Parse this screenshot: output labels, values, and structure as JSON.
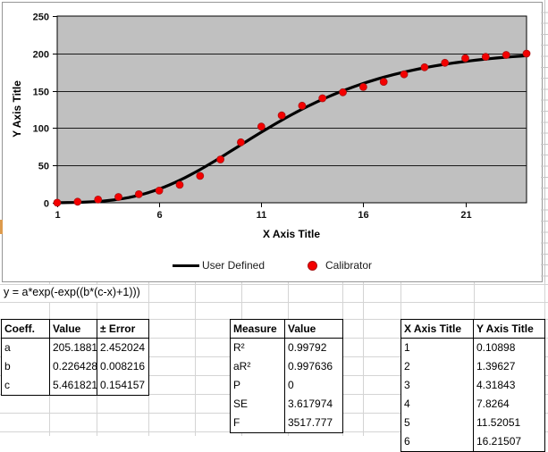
{
  "chart_data": {
    "type": "line",
    "title": "",
    "xlabel": "X Axis Title",
    "ylabel": "Y Axis Title",
    "xlim": [
      1,
      24
    ],
    "ylim": [
      0,
      250
    ],
    "x_ticks": [
      1,
      6,
      11,
      16,
      21
    ],
    "y_ticks": [
      0,
      50,
      100,
      150,
      200,
      250
    ],
    "grid": true,
    "plot_bg": "#c0c0c0",
    "legend_position": "bottom",
    "x": [
      1,
      2,
      3,
      4,
      5,
      6,
      7,
      8,
      9,
      10,
      11,
      12,
      13,
      14,
      15,
      16,
      17,
      18,
      19,
      20,
      21,
      22,
      23,
      24
    ],
    "series": [
      {
        "name": "User Defined",
        "type": "line",
        "color": "#000000",
        "values": [
          0.12,
          0.53,
          1.78,
          4.66,
          10.03,
          18.49,
          30.11,
          44.43,
          60.58,
          77.56,
          94.46,
          110.54,
          125.31,
          138.47,
          149.96,
          159.8,
          168.1,
          175.03,
          180.76,
          185.46,
          189.3,
          192.42,
          194.94,
          196.97
        ]
      },
      {
        "name": "Calibrator",
        "type": "scatter",
        "color": "#f40000",
        "values": [
          0.10898,
          1.39627,
          4.31843,
          7.8264,
          11.52051,
          16.21507,
          24,
          36,
          58,
          81,
          102,
          117,
          130,
          140,
          148,
          155,
          162,
          172,
          181.5,
          187.5,
          193.5,
          195.5,
          198,
          199.8
        ]
      }
    ],
    "fit": {
      "a": 205.1881,
      "b": 0.226428,
      "c": 5.461821
    }
  },
  "equation": {
    "text": "y = a*exp(-exp((b*(c-x)+1)))"
  },
  "tables": {
    "coefficients": {
      "headers": [
        "Coeff.",
        "Value",
        "± Error"
      ],
      "rows": [
        [
          "a",
          "205.1881",
          "2.452024"
        ],
        [
          "b",
          "0.226428",
          "0.008216"
        ],
        [
          "c",
          "5.461821",
          "0.154157"
        ]
      ]
    },
    "measures": {
      "headers": [
        "Measure",
        "Value"
      ],
      "rows": [
        [
          "R²",
          "0.99792"
        ],
        [
          "aR²",
          "0.997636"
        ],
        [
          "P",
          "0"
        ],
        [
          "SE",
          "3.617974"
        ],
        [
          "F",
          "3517.777"
        ]
      ]
    },
    "data_points": {
      "headers": [
        "X Axis Title",
        "Y Axis Title"
      ],
      "rows": [
        [
          "1",
          "0.10898"
        ],
        [
          "2",
          "1.39627"
        ],
        [
          "3",
          "4.31843"
        ],
        [
          "4",
          "7.8264"
        ],
        [
          "5",
          "11.52051"
        ],
        [
          "6",
          "16.21507"
        ]
      ]
    }
  },
  "colors": {
    "curve": "#000000",
    "calibrator_dot": "#f40000",
    "plot_background": "#c0c0c0"
  }
}
